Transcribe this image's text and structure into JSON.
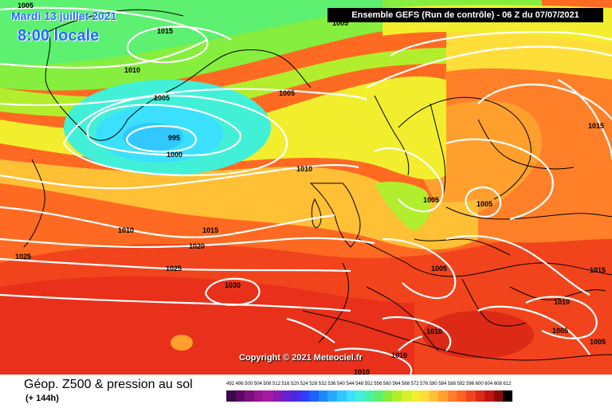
{
  "header": {
    "date": "Mardi 13 juillet 2021",
    "local_time": "8:00 locale",
    "run_info": "Ensemble GEFS  (Run de contrôle)  -  06 Z du 07/07/2021"
  },
  "copyright": "Copyright © 2021 Meteociel.fr",
  "footer": {
    "parameter": "Géop. Z500 & pression au sol",
    "lead_time": "(+ 144h)"
  },
  "isobar_labels": [
    "1005",
    "1015",
    "1010",
    "1005",
    "995",
    "1000",
    "1010",
    "1005",
    "1010",
    "1015",
    "1020",
    "1025",
    "1025",
    "1030",
    "1005",
    "1005",
    "1015",
    "1015",
    "1005",
    "1010",
    "1010",
    "1010",
    "1010",
    "1005",
    "1005",
    "1005"
  ],
  "scale": {
    "ticks": [
      "492",
      "496",
      "500",
      "504",
      "508",
      "512",
      "516",
      "520",
      "524",
      "528",
      "532",
      "536",
      "540",
      "544",
      "548",
      "552",
      "556",
      "560",
      "564",
      "568",
      "572",
      "576",
      "580",
      "584",
      "588",
      "592",
      "596",
      "600",
      "604",
      "608",
      "612"
    ],
    "colors": [
      "#3b0a4a",
      "#5a0a63",
      "#7a0f7d",
      "#96148f",
      "#a9199f",
      "#8a1ab0",
      "#6a1fcc",
      "#4b28e6",
      "#2e3dff",
      "#1c63ff",
      "#1e88ff",
      "#26aaff",
      "#30c8ff",
      "#3ce0ff",
      "#42f0d8",
      "#4cf3a6",
      "#5ef070",
      "#86ee3e",
      "#b2ee2e",
      "#d8f02a",
      "#f2ee2e",
      "#ffde3a",
      "#ffc036",
      "#ffa02e",
      "#ff8028",
      "#ff6222",
      "#f2441c",
      "#dc2a16",
      "#c01410",
      "#8a0a0a",
      "#000000"
    ]
  },
  "colors": {
    "label_blue": "#1e6cff",
    "isobar": "#ffffff",
    "coastline": "#000000"
  }
}
